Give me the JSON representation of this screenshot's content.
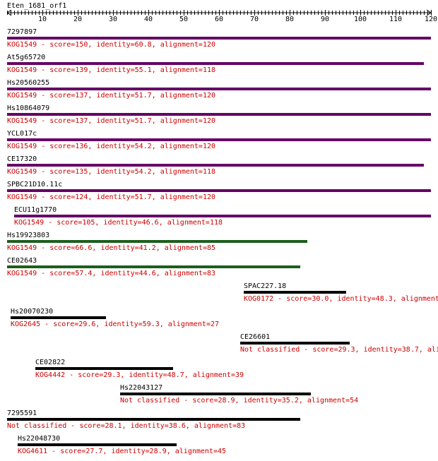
{
  "query": {
    "name": "Eten_1681_orf1",
    "length": 120,
    "ticks": [
      "10",
      "20",
      "30",
      "40",
      "50",
      "60",
      "70",
      "80",
      "90",
      "100",
      "110",
      "120"
    ]
  },
  "colors": {
    "purple": "#660066",
    "green": "#1c5e1c",
    "black": "#000000",
    "desc": "#cc0000"
  },
  "hits": [
    {
      "name": "7297897",
      "desc": "KOG1549 - score=150, identity=60.8, alignment=120",
      "start": 1,
      "end": 120,
      "color": "purple"
    },
    {
      "name": "At5g65720",
      "desc": "KOG1549 - score=139, identity=55.1, alignment=118",
      "start": 1,
      "end": 118,
      "color": "purple"
    },
    {
      "name": "Hs20560255",
      "desc": "KOG1549 - score=137, identity=51.7, alignment=120",
      "start": 1,
      "end": 120,
      "color": "purple"
    },
    {
      "name": "Hs10864079",
      "desc": "KOG1549 - score=137, identity=51.7, alignment=120",
      "start": 1,
      "end": 120,
      "color": "purple"
    },
    {
      "name": "YCL017c",
      "desc": "KOG1549 - score=136, identity=54.2, alignment=120",
      "start": 1,
      "end": 120,
      "color": "purple"
    },
    {
      "name": "CE17320",
      "desc": "KOG1549 - score=135, identity=54.2, alignment=118",
      "start": 1,
      "end": 118,
      "color": "purple"
    },
    {
      "name": "SPBC21D10.11c",
      "desc": "KOG1549 - score=124, identity=51.7, alignment=120",
      "start": 1,
      "end": 120,
      "color": "purple"
    },
    {
      "name": "ECU11g1770",
      "desc": "KOG1549 - score=105, identity=46.6, alignment=118",
      "start": 3,
      "end": 120,
      "color": "purple"
    },
    {
      "name": "Hs19923803",
      "desc": "KOG1549 - score=66.6, identity=41.2, alignment=85",
      "start": 1,
      "end": 85,
      "color": "green"
    },
    {
      "name": "CE02643",
      "desc": "KOG1549 - score=57.4, identity=44.6, alignment=83",
      "start": 1,
      "end": 83,
      "color": "green"
    },
    {
      "name": "SPAC227.18",
      "desc": "KOG0172 - score=30.0, identity=48.3, alignment",
      "start": 68,
      "end": 96,
      "color": "black"
    },
    {
      "name": "Hs20070230",
      "desc": "KOG2645 - score=29.6, identity=59.3, alignment=27",
      "start": 2,
      "end": 28,
      "color": "black"
    },
    {
      "name": "CE26601",
      "desc": "Not classified - score=29.3, identity=38.7, ali",
      "start": 67,
      "end": 97,
      "color": "black"
    },
    {
      "name": "CE02822",
      "desc": "KOG4442 - score=29.3, identity=48.7, alignment=39",
      "start": 9,
      "end": 47,
      "color": "black"
    },
    {
      "name": "Hs22043127",
      "desc": "Not classified - score=28.9, identity=35.2, alignment=54",
      "start": 33,
      "end": 86,
      "color": "black"
    },
    {
      "name": "7295591",
      "desc": "Not classified - score=28.1, identity=38.6, alignment=83",
      "start": 1,
      "end": 83,
      "color": "black"
    },
    {
      "name": "Hs22048730",
      "desc": "KOG4611 - score=27.7, identity=28.9, alignment=45",
      "start": 4,
      "end": 48,
      "color": "black"
    }
  ]
}
